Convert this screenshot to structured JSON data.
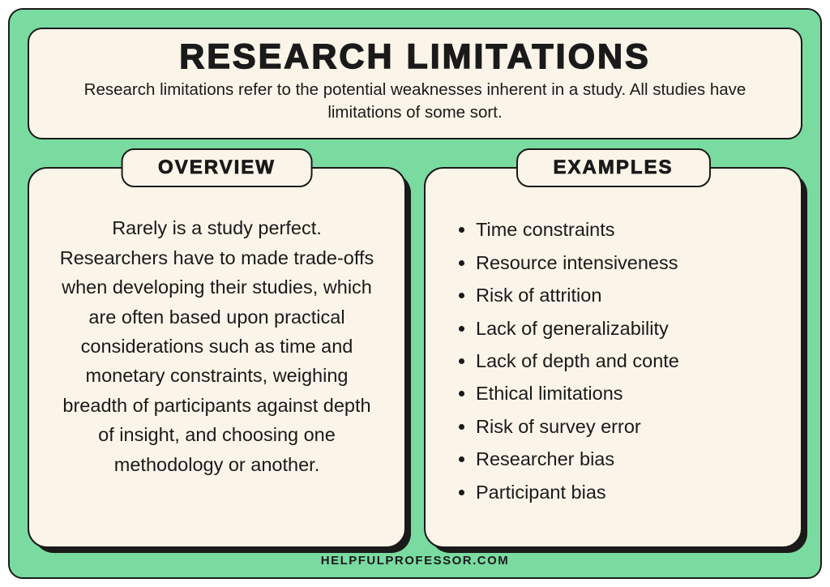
{
  "colors": {
    "frame_bg": "#7adba1",
    "card_bg": "#fbf5e9",
    "border": "#1a1a1a",
    "text": "#1a1a1a"
  },
  "header": {
    "title": "RESEARCH LIMITATIONS",
    "subtitle": "Research limitations refer to the potential weaknesses inherent in a study. All studies have limitations of some sort."
  },
  "overview": {
    "tab": "OVERVIEW",
    "text": "Rarely is a study perfect. Researchers have to made trade-offs when developing their studies, which are often based upon practical considerations such as time and monetary constraints, weighing breadth of participants against depth of insight, and choosing one methodology or another."
  },
  "examples": {
    "tab": "EXAMPLES",
    "items": [
      "Time constraints",
      "Resource intensiveness",
      "Risk of attrition",
      "Lack of generalizability",
      "Lack of depth and conte",
      "Ethical limitations",
      "Risk of survey error",
      "Researcher bias",
      "Participant bias"
    ]
  },
  "footer": "HELPFULPROFESSOR.COM"
}
